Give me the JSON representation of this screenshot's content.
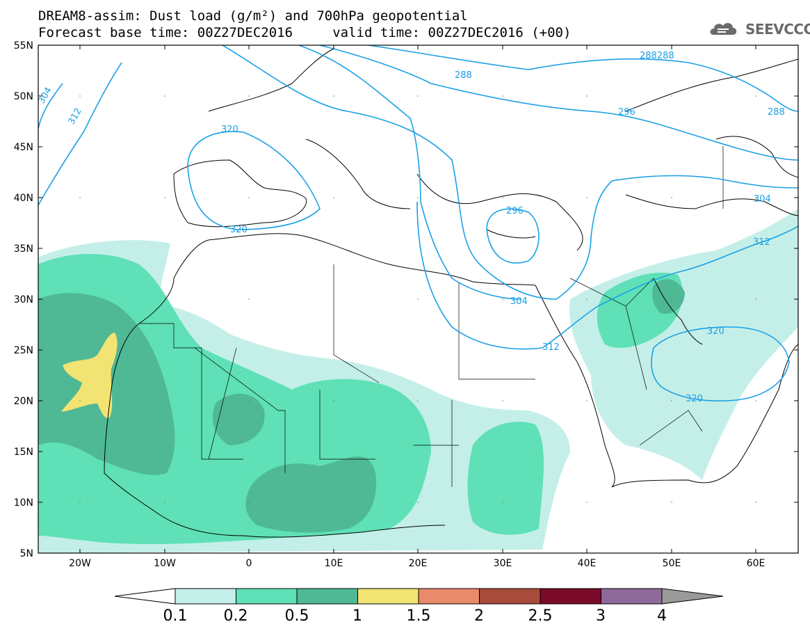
{
  "title": {
    "line1": "DREAM8-assim: Dust load (g/m²) and 700hPa geopotential",
    "line2": "Forecast base time: 00Z27DEC2016     valid time: 00Z27DEC2016 (+00)"
  },
  "logo": {
    "text": "SEEVCCC",
    "icon": "cloud-icon"
  },
  "map": {
    "lat_labels": [
      "55N",
      "50N",
      "45N",
      "40N",
      "35N",
      "30N",
      "25N",
      "20N",
      "15N",
      "10N",
      "5N"
    ],
    "lon_labels": [
      "20W",
      "10W",
      "0",
      "10E",
      "20E",
      "30E",
      "40E",
      "50E",
      "60E"
    ],
    "extent": {
      "lon": [
        -25,
        65
      ],
      "lat": [
        5,
        55
      ]
    },
    "contour_color": "#1aa0e6",
    "contour_labels": [
      "304",
      "312",
      "320",
      "320",
      "288",
      "288288",
      "288",
      "296",
      "296",
      "304",
      "304",
      "312",
      "312",
      "320",
      "320",
      "320"
    ]
  },
  "colorbar": {
    "ticks": [
      "0.1",
      "0.2",
      "0.5",
      "1",
      "1.5",
      "2",
      "2.5",
      "3",
      "4"
    ],
    "colors": [
      "#c4efe8",
      "#5fe0b6",
      "#4fb895",
      "#f2e473",
      "#e98a6a",
      "#a84a3c",
      "#7a0a2a",
      "#8e6a9a",
      "#9a9a9a"
    ]
  },
  "dust_colors": {
    "light": "#c4efe8",
    "medium": "#5fe0b6",
    "dark": "#4fb895",
    "yellow": "#f2e473"
  }
}
